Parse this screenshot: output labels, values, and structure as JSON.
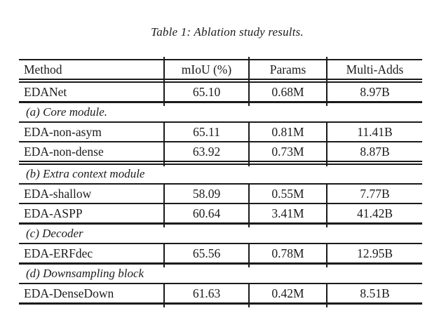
{
  "caption": "Table 1: Ablation study results.",
  "colors": {
    "ink": "#1c1c1c",
    "line": "#1a1a1a",
    "background": "#ffffff"
  },
  "table": {
    "headers": [
      "Method",
      "mIoU (%)",
      "Params",
      "Multi-Adds"
    ],
    "rows": [
      {
        "type": "data",
        "method": "EDANet",
        "miou": "65.10",
        "params": "0.68M",
        "multi_adds": "8.97B"
      },
      {
        "type": "section",
        "label": "(a) Core module."
      },
      {
        "type": "data",
        "method": "EDA-non-asym",
        "miou": "65.11",
        "params": "0.81M",
        "multi_adds": "11.41B"
      },
      {
        "type": "data",
        "method": "EDA-non-dense",
        "miou": "63.92",
        "params": "0.73M",
        "multi_adds": "8.87B"
      },
      {
        "type": "section",
        "label": "(b) Extra context module"
      },
      {
        "type": "data",
        "method": "EDA-shallow",
        "miou": "58.09",
        "params": "0.55M",
        "multi_adds": "7.77B"
      },
      {
        "type": "data",
        "method": "EDA-ASPP",
        "miou": "60.64",
        "params": "3.41M",
        "multi_adds": "41.42B"
      },
      {
        "type": "section",
        "label": "(c) Decoder"
      },
      {
        "type": "data",
        "method": "EDA-ERFdec",
        "miou": "65.56",
        "params": "0.78M",
        "multi_adds": "12.95B"
      },
      {
        "type": "section",
        "label": "(d) Downsampling block"
      },
      {
        "type": "data",
        "method": "EDA-DenseDown",
        "miou": "61.63",
        "params": "0.42M",
        "multi_adds": "8.51B"
      }
    ]
  }
}
